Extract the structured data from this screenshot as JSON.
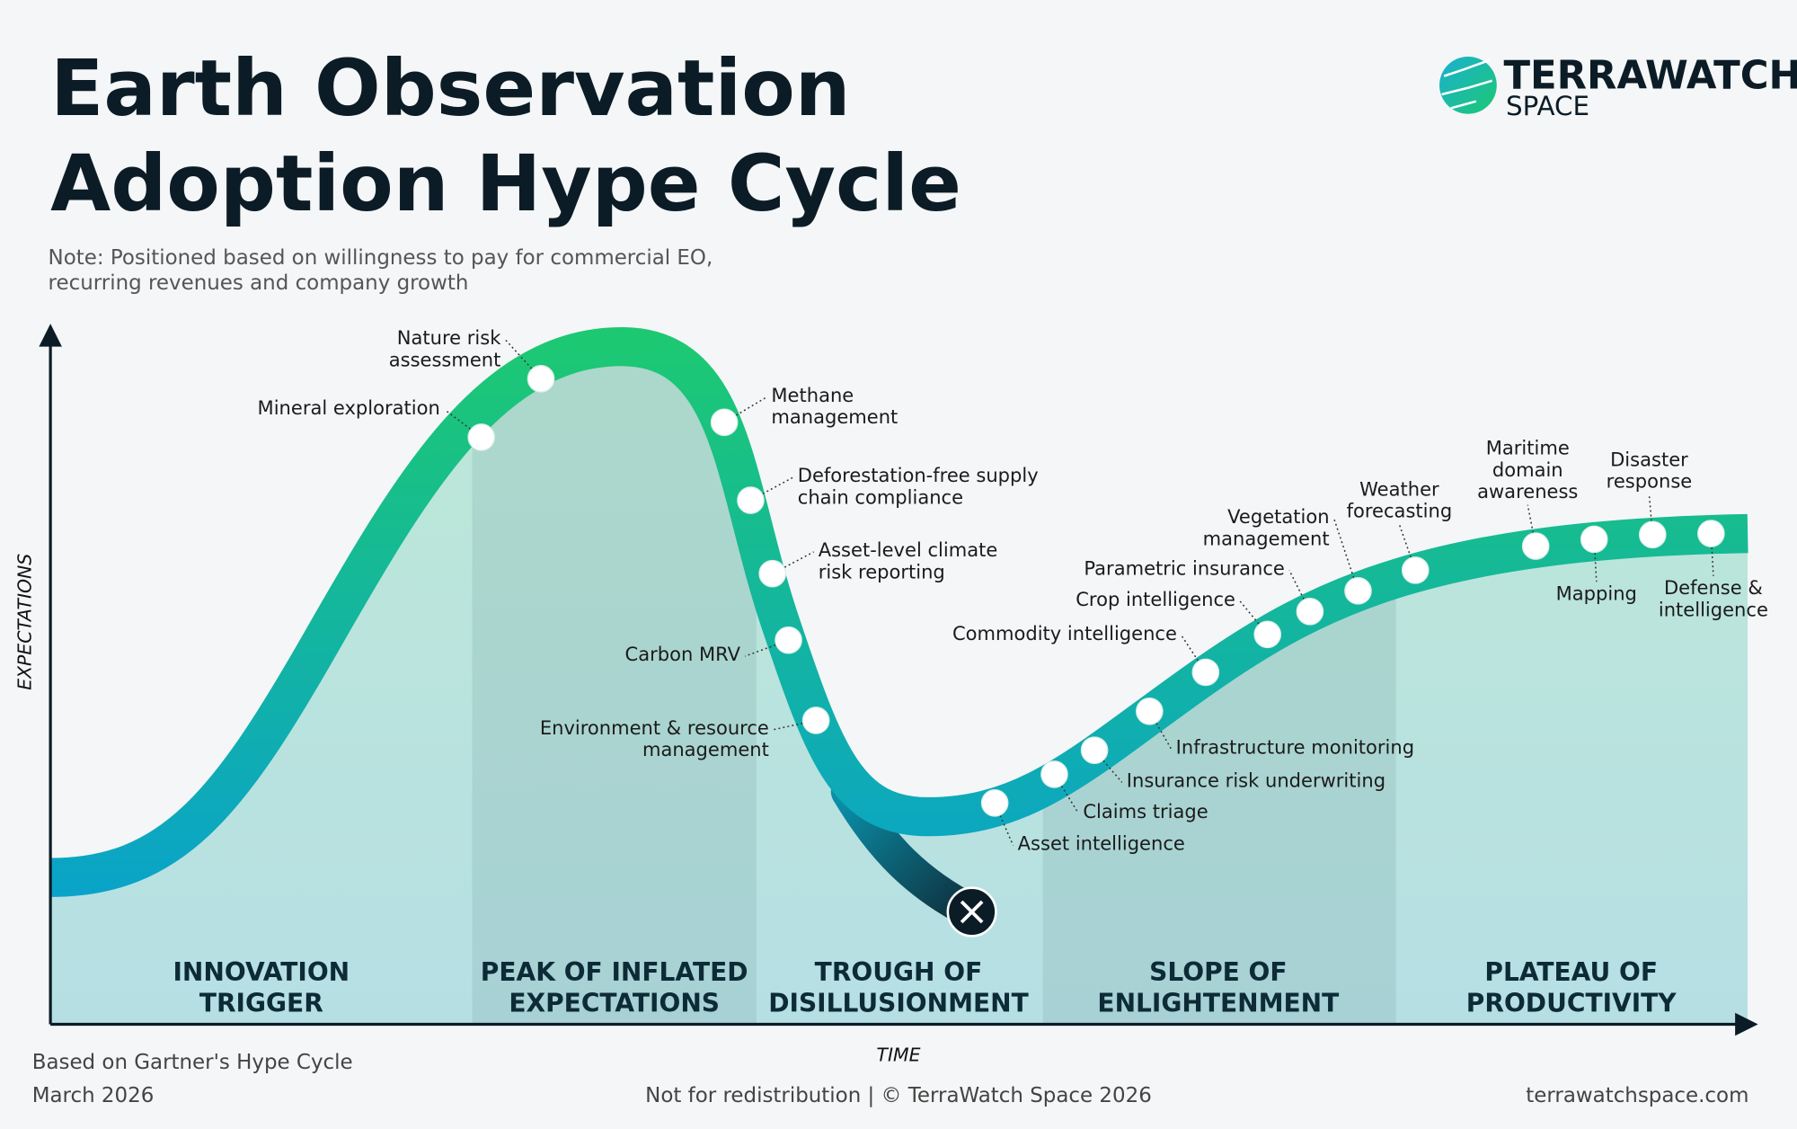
{
  "header": {
    "title": [
      "Earth Observation",
      "Adoption Hype Cycle"
    ],
    "note": [
      "Note: Positioned based on willingness to pay for commercial EO,",
      "recurring revenues and company growth"
    ]
  },
  "logo": {
    "name": "TERRAWATCH",
    "sub": "SPACE"
  },
  "axes": {
    "y": "EXPECTATIONS",
    "x": "TIME"
  },
  "phases": [
    [
      "INNOVATION",
      "TRIGGER"
    ],
    [
      "PEAK OF INFLATED",
      "EXPECTATIONS"
    ],
    [
      "TROUGH OF",
      "DISILLUSIONMENT"
    ],
    [
      "SLOPE OF",
      "ENLIGHTENMENT"
    ],
    [
      "PLATEAU OF",
      "PRODUCTIVITY"
    ]
  ],
  "items": [
    [
      "Mineral exploration"
    ],
    [
      "Nature risk",
      "assessment"
    ],
    [
      "Methane",
      "management"
    ],
    [
      "Deforestation-free supply",
      "chain compliance"
    ],
    [
      "Asset-level climate",
      "risk reporting"
    ],
    [
      "Carbon MRV"
    ],
    [
      "Environment & resource",
      "management"
    ],
    [
      "Asset intelligence"
    ],
    [
      "Claims triage"
    ],
    [
      "Insurance risk underwriting"
    ],
    [
      "Infrastructure monitoring"
    ],
    [
      "Commodity intelligence"
    ],
    [
      "Crop intelligence"
    ],
    [
      "Parametric insurance"
    ],
    [
      "Vegetation",
      "management"
    ],
    [
      "Weather",
      "forecasting"
    ],
    [
      "Maritime",
      "domain",
      "awareness"
    ],
    [
      "Mapping"
    ],
    [
      "Disaster",
      "response"
    ],
    [
      "Defense &",
      "intelligence"
    ]
  ],
  "footer": {
    "source": "Based on Gartner's Hype Cycle",
    "date": "March 2026",
    "rights": "Not for redistribution | © TerraWatch Space 2026",
    "url": "terrawatchspace.com"
  }
}
